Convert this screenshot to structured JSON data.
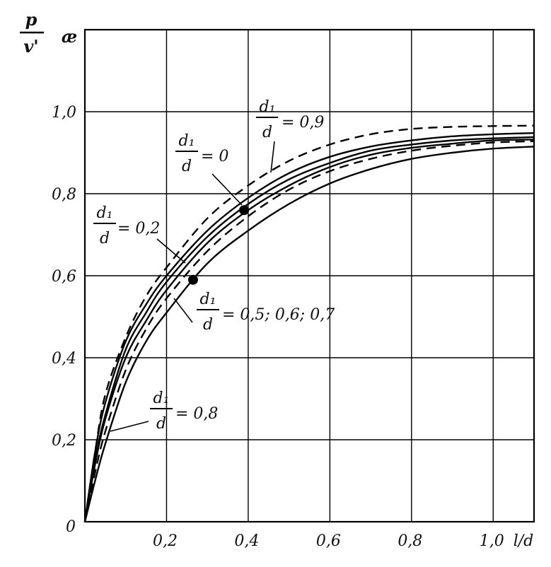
{
  "chart_data": {
    "type": "line",
    "xlabel": "l/d",
    "ylabel_num": "p",
    "ylabel_den": "v'",
    "ylabel_symbol": "æ",
    "origin_label": "0",
    "xlim": [
      0,
      1.1
    ],
    "ylim": [
      0,
      1.2
    ],
    "grid": true,
    "x_ticks": [
      {
        "v": 0.2,
        "label": "0,2"
      },
      {
        "v": 0.4,
        "label": "0,4"
      },
      {
        "v": 0.6,
        "label": "0,6"
      },
      {
        "v": 0.8,
        "label": "0,8"
      },
      {
        "v": 1.0,
        "label": "1,0"
      }
    ],
    "y_ticks": [
      {
        "v": 0.2,
        "label": "0,2"
      },
      {
        "v": 0.4,
        "label": "0,4"
      },
      {
        "v": 0.6,
        "label": "0,6"
      },
      {
        "v": 0.8,
        "label": "0,8"
      },
      {
        "v": 1.0,
        "label": "1,0"
      }
    ],
    "x": [
      0,
      0.025,
      0.05,
      0.1,
      0.15,
      0.2,
      0.3,
      0.4,
      0.5,
      0.6,
      0.7,
      0.8,
      0.9,
      1.0,
      1.1
    ],
    "series": [
      {
        "style": "dashed",
        "values": [
          0,
          0.17,
          0.31,
          0.45,
          0.55,
          0.62,
          0.74,
          0.82,
          0.88,
          0.92,
          0.945,
          0.958,
          0.963,
          0.965,
          0.966
        ]
      },
      {
        "style": "solid",
        "values": [
          0,
          0.17,
          0.29,
          0.44,
          0.53,
          0.6,
          0.71,
          0.79,
          0.85,
          0.89,
          0.915,
          0.93,
          0.94,
          0.945,
          0.948
        ]
      },
      {
        "style": "solid",
        "values": [
          0,
          0.15,
          0.26,
          0.42,
          0.51,
          0.585,
          0.695,
          0.775,
          0.835,
          0.875,
          0.905,
          0.92,
          0.93,
          0.935,
          0.938
        ]
      },
      {
        "style": "solid",
        "values": [
          0,
          0.14,
          0.25,
          0.4,
          0.49,
          0.565,
          0.68,
          0.76,
          0.82,
          0.865,
          0.895,
          0.912,
          0.922,
          0.93,
          0.932
        ]
      },
      {
        "style": "dashed",
        "values": [
          0,
          0.12,
          0.22,
          0.37,
          0.47,
          0.545,
          0.66,
          0.745,
          0.81,
          0.855,
          0.885,
          0.905,
          0.917,
          0.925,
          0.928
        ]
      },
      {
        "style": "solid",
        "values": [
          0,
          0.1,
          0.19,
          0.34,
          0.44,
          0.51,
          0.63,
          0.71,
          0.775,
          0.825,
          0.86,
          0.885,
          0.9,
          0.91,
          0.915
        ]
      }
    ],
    "markers": [
      {
        "x": 0.39,
        "y": 0.76
      },
      {
        "x": 0.265,
        "y": 0.59
      }
    ],
    "annotations": [
      {
        "num": "d₁",
        "den": "d",
        "value": "= 0,9"
      },
      {
        "num": "d₁",
        "den": "d",
        "value": "= 0"
      },
      {
        "num": "d₁",
        "den": "d",
        "value": "= 0,2"
      },
      {
        "num": "d₁",
        "den": "d",
        "value": "= 0,5; 0,6; 0,7"
      },
      {
        "num": "d₁",
        "den": "d",
        "value": "= 0,8"
      }
    ]
  }
}
